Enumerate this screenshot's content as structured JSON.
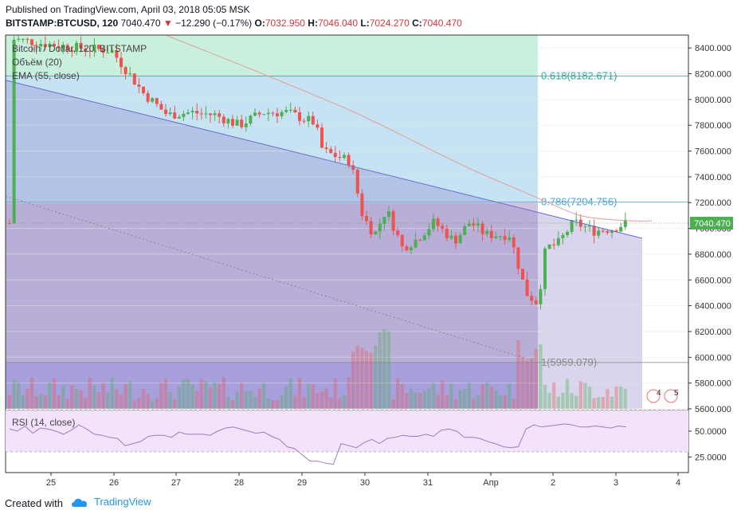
{
  "header": {
    "published": "Published on TradingView.com, April 03, 2018 05:05 MSK",
    "symbol_interval": "BITSTAMP:BTCUSD, 120",
    "last": "7040.470",
    "change": "−12.290 (−0.17%)",
    "o_label": "O:",
    "o": "7032.950",
    "h_label": "H:",
    "h": "7046.040",
    "l_label": "L:",
    "l": "7024.270",
    "c_label": "C:",
    "c": "7040.470"
  },
  "legend": {
    "title": "Bitcoin / Dollar, 120, BITSTAMP",
    "volume": "Объём (20)",
    "ema": "EMA (55, close)"
  },
  "rsi_label": "RSI (14, close)",
  "footer": {
    "created_with": "Created with",
    "brand": "TradingView"
  },
  "colors": {
    "up": "#4caf50",
    "down": "#ef5350",
    "fib_top": "#c8f0dc",
    "fib_mid": "#c6e3f4",
    "fib_low": "#cfc3e0",
    "fib_bottom": "#b4aee8",
    "rsi_band": "#f2e2fb",
    "ema": "#e0a0a0",
    "trendline": "#6a6fd0"
  },
  "chart_data": {
    "type": "candlestick",
    "price_axis": {
      "ylim": [
        5600,
        8500
      ],
      "ticks": [
        "8400.000",
        "8200.000",
        "8000.000",
        "7800.000",
        "7600.000",
        "7400.000",
        "7200.000",
        "7000.000",
        "6800.000",
        "6600.000",
        "6400.000",
        "6200.000",
        "6000.000",
        "5800.000",
        "5600.000"
      ]
    },
    "last_price_label": "7040.470",
    "fib_levels": [
      {
        "label": "0.618(8182.671)",
        "value": 8182.671
      },
      {
        "label": "0.786(7204.756)",
        "value": 7204.756
      },
      {
        "label": "1(5959.079)",
        "value": 5959.079
      }
    ],
    "x_ticks": [
      "25",
      "26",
      "27",
      "28",
      "29",
      "30",
      "31",
      "Апр",
      "2",
      "3",
      "4"
    ],
    "rsi": {
      "ylim": [
        10,
        70
      ],
      "ticks": [
        "50.0000",
        "25.0000"
      ],
      "band": [
        30,
        70
      ],
      "values": [
        52,
        50,
        55,
        48,
        53,
        52,
        50,
        47,
        51,
        56,
        52,
        47,
        46,
        44,
        43,
        36,
        38,
        40,
        45,
        46,
        46,
        44,
        49,
        47,
        47,
        47,
        46,
        50,
        53,
        54,
        52,
        50,
        48,
        49,
        45,
        42,
        35,
        33,
        27,
        21,
        21,
        19,
        18,
        38,
        36,
        34,
        39,
        42,
        38,
        43,
        44,
        46,
        45,
        45,
        47,
        45,
        51,
        52,
        50,
        44,
        44,
        43,
        40,
        38,
        35,
        34,
        35,
        52,
        56,
        54,
        55,
        56,
        57,
        56,
        54,
        54,
        55,
        54,
        53,
        55,
        54
      ]
    },
    "events": [
      "4",
      "5"
    ]
  }
}
